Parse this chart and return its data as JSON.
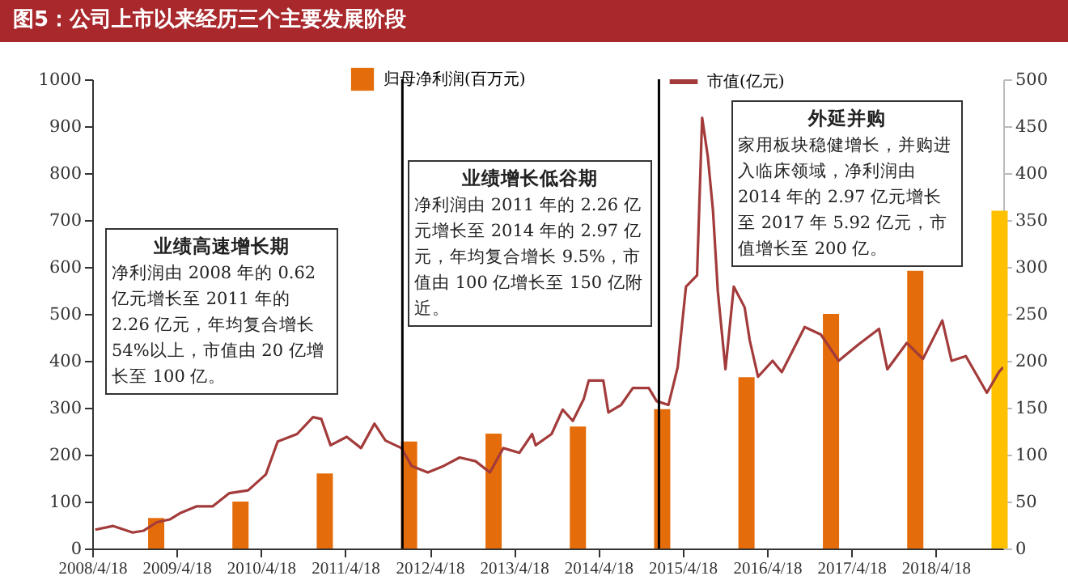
{
  "chart_data": {
    "type": "bar",
    "title": "图5：公司上市以来经历三个主要发展阶段",
    "annotations": [
      "业绩高速增长期",
      "净利润由 2008 年的 0.62 亿元增长至 2011 年的 2.26 亿元，年均复合增长 54%以上，市值由 20 亿增长至 100 亿。",
      "业绩增长低谷期",
      "净利润由 2011 年的 2.26 亿元增长至 2014 年的 2.97 亿元，年均复合增长 9.5%，市值由 100 亿增长至 150 亿附近。",
      "外延并购",
      "家用板块稳健增长，并购进入临床领域，净利润由 2014 年的 2.97 亿元增长至 2017 年 5.92 亿元，市值增长至 200 亿。"
    ],
    "series": [
      {
        "name": "归母净利润(百万元)",
        "color": "#e46c0a",
        "x": [
          "2009-01-20",
          "2010-01-20",
          "2011-01-20",
          "2012-01-20",
          "2013-01-20",
          "2014-01-20",
          "2015-01-20",
          "2016-01-20",
          "2017-01-20",
          "2018-01-20",
          "2019-01-20"
        ],
        "values": [
          65,
          100,
          160,
          228,
          245,
          260,
          297,
          365,
          500,
          592,
          720
        ],
        "colors": [
          "#e46c0a",
          "#e46c0a",
          "#e46c0a",
          "#e46c0a",
          "#e46c0a",
          "#e46c0a",
          "#e46c0a",
          "#e46c0a",
          "#e46c0a",
          "#e46c0a",
          "#ffc000"
        ]
      },
      {
        "name": "市值(亿元)",
        "type": "line",
        "axis": "y2",
        "color": "#a33b3b",
        "x": [
          "2008-05-01",
          "2008-07-18",
          "2008-10-10",
          "2008-11-27",
          "2009-01-23",
          "2009-03-20",
          "2009-05-06",
          "2009-07-15",
          "2009-09-22",
          "2009-12-03",
          "2010-02-22",
          "2010-05-10",
          "2010-06-30",
          "2010-09-22",
          "2010-11-30",
          "2011-01-05",
          "2011-02-14",
          "2011-04-25",
          "2011-06-26",
          "2011-08-23",
          "2011-10-10",
          "2011-12-18",
          "2012-01-31",
          "2012-04-10",
          "2012-06-18",
          "2012-08-26",
          "2012-11-03",
          "2013-01-04",
          "2013-03-03",
          "2013-05-12",
          "2013-07-06",
          "2013-07-21",
          "2013-09-28",
          "2013-11-15",
          "2013-12-29",
          "2014-02-14",
          "2014-03-08",
          "2014-05-10",
          "2014-06-01",
          "2014-07-26",
          "2014-09-15",
          "2014-11-23",
          "2014-12-27",
          "2015-02-16",
          "2015-03-28",
          "2015-05-03",
          "2015-06-20",
          "2015-07-12",
          "2015-08-06",
          "2015-08-28",
          "2015-09-18",
          "2015-10-21",
          "2015-11-26",
          "2016-01-12",
          "2016-02-03",
          "2016-03-10",
          "2016-05-12",
          "2016-06-21",
          "2016-09-28",
          "2016-12-07",
          "2017-02-22",
          "2017-05-17",
          "2017-08-16",
          "2017-09-21",
          "2017-12-14",
          "2018-02-22",
          "2018-05-17",
          "2018-06-26",
          "2018-08-27",
          "2018-11-26",
          "2019-01-17",
          "2019-02-04"
        ],
        "values": [
          20,
          24,
          17,
          19,
          28,
          31,
          38,
          45,
          45,
          59,
          62,
          79,
          114,
          122,
          140,
          138,
          110,
          119,
          107,
          133,
          115,
          107,
          88,
          81,
          88,
          97,
          93,
          81,
          107,
          102,
          122,
          110,
          122,
          148,
          136,
          159,
          179,
          179,
          145,
          153,
          171,
          171,
          157,
          153,
          193,
          279,
          291,
          459,
          417,
          360,
          274,
          191,
          279,
          257,
          222,
          183,
          200,
          188,
          236,
          228,
          200,
          217,
          234,
          191,
          219,
          202,
          243,
          200,
          205,
          166,
          188,
          193
        ]
      }
    ],
    "xlim": [
      "2008-04-18",
      "2019-02-05"
    ],
    "xticks": [
      {
        "value": "2008-04-18",
        "label": "2008/4/18"
      },
      {
        "value": "2009-04-18",
        "label": "2009/4/18"
      },
      {
        "value": "2010-04-18",
        "label": "2010/4/18"
      },
      {
        "value": "2011-04-18",
        "label": "2011/4/18"
      },
      {
        "value": "2012-04-18",
        "label": "2012/4/18"
      },
      {
        "value": "2013-04-18",
        "label": "2013/4/18"
      },
      {
        "value": "2014-04-18",
        "label": "2014/4/18"
      },
      {
        "value": "2015-04-18",
        "label": "2015/4/18"
      },
      {
        "value": "2016-04-18",
        "label": "2016/4/18"
      },
      {
        "value": "2017-04-18",
        "label": "2017/4/18"
      },
      {
        "value": "2018-04-18",
        "label": "2018/4/18"
      }
    ],
    "ylim": [
      0,
      1000
    ],
    "yticks": [
      0,
      100,
      200,
      300,
      400,
      500,
      600,
      700,
      800,
      900,
      1000
    ],
    "y2lim": [
      0,
      500
    ],
    "y2ticks": [
      0,
      50,
      100,
      150,
      200,
      250,
      300,
      350,
      400,
      450,
      500
    ],
    "ref_lines": [
      {
        "axis": "x",
        "value": "2011-12-22",
        "color": "#000000"
      },
      {
        "axis": "x",
        "value": "2015-01-06",
        "color": "#000000"
      }
    ],
    "legend": "top"
  }
}
